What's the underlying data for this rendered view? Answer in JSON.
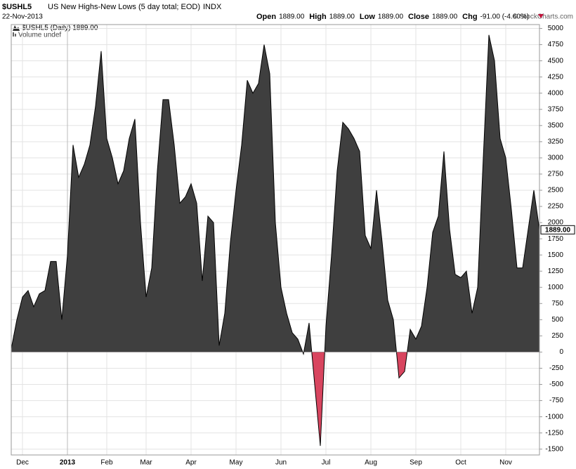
{
  "chart_data": {
    "type": "area",
    "symbol": "$USHL5",
    "title": "US New Highs-New Lows (5 day total; EOD)",
    "exchange": "INDX",
    "date": "22-Nov-2013",
    "quote": [
      {
        "label": "Open",
        "value": "1889.00"
      },
      {
        "label": "High",
        "value": "1889.00"
      },
      {
        "label": "Low",
        "value": "1889.00"
      },
      {
        "label": "Close",
        "value": "1889.00"
      },
      {
        "label": "Chg",
        "value": "-91.00 (-4.60%)"
      }
    ],
    "credit": "© StockCharts.com",
    "legend": [
      "$USHL5 (Daily) 1889.00",
      "Volume undef"
    ],
    "last_label": "1889.00",
    "colors": {
      "positive": "#3f3f3f",
      "negative": "#d8455f",
      "line": "#000000"
    },
    "grid": true,
    "categories": [
      null,
      null,
      "Dec",
      null,
      null,
      null,
      null,
      null,
      null,
      null,
      "2013",
      null,
      null,
      null,
      null,
      null,
      null,
      "Feb",
      null,
      null,
      null,
      null,
      null,
      null,
      "Mar",
      null,
      null,
      null,
      null,
      null,
      null,
      null,
      "Apr",
      null,
      null,
      null,
      null,
      null,
      null,
      null,
      "May",
      null,
      null,
      null,
      null,
      null,
      null,
      null,
      "Jun",
      null,
      null,
      null,
      null,
      null,
      null,
      null,
      "Jul",
      null,
      null,
      null,
      null,
      null,
      null,
      null,
      "Aug",
      null,
      null,
      null,
      null,
      null,
      null,
      null,
      "Sep",
      null,
      null,
      null,
      null,
      null,
      null,
      null,
      "Oct",
      null,
      null,
      null,
      null,
      null,
      null,
      null,
      "Nov",
      null,
      null,
      null,
      null,
      null,
      null
    ],
    "values": [
      50,
      500,
      850,
      950,
      700,
      900,
      950,
      1400,
      1400,
      500,
      1500,
      3200,
      2700,
      2900,
      3200,
      3800,
      4650,
      3300,
      3000,
      2600,
      2800,
      3300,
      3600,
      2000,
      850,
      1300,
      2800,
      3900,
      3900,
      3200,
      2300,
      2400,
      2600,
      2300,
      1100,
      2100,
      2000,
      100,
      600,
      1700,
      2500,
      3200,
      4200,
      4000,
      4150,
      4750,
      4300,
      2000,
      1000,
      600,
      300,
      200,
      -30,
      450,
      -500,
      -1450,
      400,
      1500,
      2800,
      3550,
      3450,
      3300,
      3100,
      1800,
      1600,
      2500,
      1700,
      800,
      500,
      -400,
      -300,
      350,
      200,
      400,
      1000,
      1850,
      2100,
      3100,
      1900,
      1200,
      1150,
      1250,
      600,
      1000,
      3000,
      4900,
      4500,
      3300,
      3000,
      2200,
      1300,
      1300,
      1900,
      2500,
      1889
    ],
    "ylim": [
      -1590,
      5060
    ],
    "yticks": [
      -1500,
      -1250,
      -1000,
      -750,
      -500,
      -250,
      0,
      250,
      500,
      750,
      1000,
      1250,
      1500,
      1750,
      2000,
      2250,
      2500,
      2750,
      3000,
      3250,
      3500,
      3750,
      4000,
      4250,
      4500,
      4750,
      5000
    ]
  }
}
